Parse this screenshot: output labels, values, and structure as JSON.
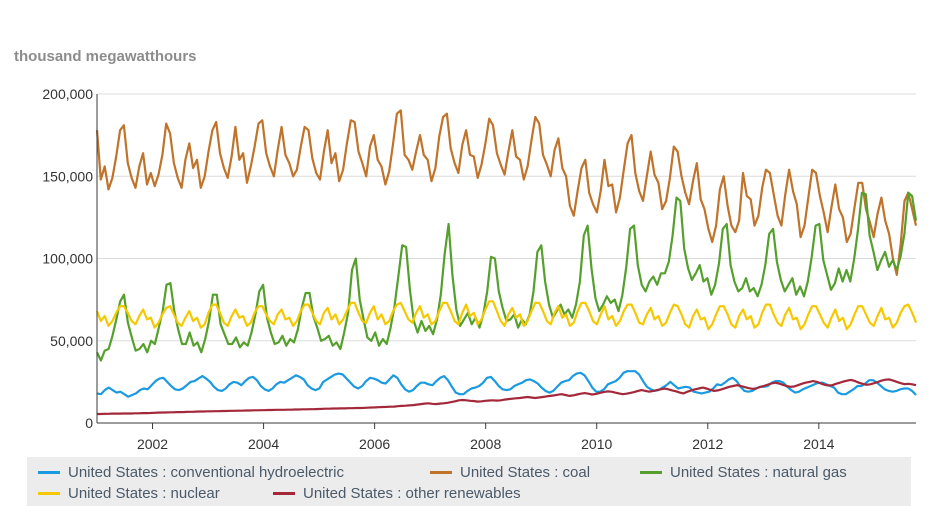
{
  "unit_label": "thousand megawatthours",
  "chart_data": {
    "type": "line",
    "ylabel": "thousand megawatthours",
    "ylim": [
      0,
      200000
    ],
    "y_ticks": [
      "200,000",
      "150,000",
      "100,000",
      "50,000",
      "0"
    ],
    "x_ticks": [
      "2002",
      "2004",
      "2006",
      "2008",
      "2010",
      "2012",
      "2014"
    ],
    "x_range": [
      2001.0,
      2015.75
    ],
    "grid": true,
    "legend": "bottom",
    "series": [
      {
        "name": "United States : conventional hydroelectric",
        "color": "#1a9ae0",
        "values": [
          18000,
          17500,
          20000,
          21500,
          20000,
          18500,
          19000,
          17500,
          16000,
          17000,
          18000,
          20000,
          21000,
          20500,
          23000,
          25500,
          27000,
          27500,
          25000,
          22500,
          20500,
          20000,
          21000,
          23000,
          25000,
          25500,
          27000,
          28500,
          27000,
          25000,
          22000,
          20000,
          19500,
          21000,
          23500,
          25000,
          24500,
          23000,
          25500,
          27500,
          28000,
          26000,
          22500,
          20500,
          19500,
          21000,
          23500,
          25000,
          24500,
          26000,
          27500,
          29000,
          28000,
          26500,
          23000,
          21000,
          20000,
          21000,
          25000,
          26500,
          28000,
          29500,
          30000,
          29500,
          27000,
          24500,
          22000,
          21000,
          22500,
          25500,
          27500,
          27000,
          26000,
          24500,
          24000,
          26500,
          29000,
          27500,
          23500,
          20500,
          19000,
          20000,
          22500,
          24500,
          24500,
          23500,
          23000,
          25500,
          27500,
          28500,
          26000,
          22000,
          18500,
          17500,
          17500,
          19500,
          21000,
          21500,
          22500,
          24500,
          27500,
          28000,
          25500,
          22500,
          20500,
          20000,
          20500,
          22500,
          23500,
          24500,
          26000,
          26500,
          25500,
          24000,
          21500,
          19500,
          18500,
          19500,
          22000,
          24500,
          25500,
          26000,
          28500,
          30000,
          30500,
          29000,
          25500,
          21500,
          19000,
          19000,
          20500,
          23500,
          24500,
          25500,
          27500,
          30500,
          31500,
          31500,
          31500,
          29500,
          25500,
          22000,
          20500,
          19500,
          20000,
          21500,
          23000,
          25000,
          23000,
          21000,
          21500,
          22000,
          21500,
          19000,
          18500,
          18000,
          18500,
          19000,
          21000,
          23500,
          23000,
          24500,
          26500,
          27500,
          25500,
          22000,
          19500,
          19000,
          19500,
          21000,
          22000,
          22000,
          22500,
          24500,
          25500,
          25500,
          24500,
          22000,
          20000,
          18500,
          19000,
          20500,
          21500,
          22500,
          23500,
          24500,
          24500,
          23500,
          22500,
          21500,
          18500,
          17500,
          17500,
          19000,
          20500,
          22500,
          22500,
          24000,
          26000,
          26000,
          24500,
          22500,
          20500,
          19500,
          19000,
          19500,
          20500,
          21000,
          21000,
          19500,
          17000
        ]
      },
      {
        "name": "United States : coal",
        "color": "#c0732a",
        "values": [
          178000,
          148000,
          156000,
          142000,
          149000,
          162000,
          178000,
          181000,
          158000,
          149000,
          143000,
          156000,
          164000,
          145000,
          152000,
          144000,
          151000,
          163000,
          182000,
          176000,
          158000,
          149000,
          143000,
          160000,
          170000,
          155000,
          160000,
          143000,
          150000,
          165000,
          178000,
          183000,
          164000,
          155000,
          149000,
          162000,
          180000,
          160000,
          164000,
          146000,
          156000,
          168000,
          182000,
          184000,
          164000,
          156000,
          150000,
          166000,
          180000,
          163000,
          158000,
          150000,
          154000,
          168000,
          180000,
          178000,
          161000,
          152000,
          148000,
          165000,
          178000,
          158000,
          164000,
          147000,
          154000,
          170000,
          184000,
          183000,
          165000,
          158000,
          150000,
          168000,
          175000,
          160000,
          156000,
          145000,
          153000,
          170000,
          188000,
          190000,
          163000,
          160000,
          154000,
          165000,
          175000,
          163000,
          160000,
          147000,
          155000,
          174000,
          186000,
          188000,
          167000,
          158000,
          152000,
          169000,
          178000,
          163000,
          162000,
          149000,
          157000,
          170000,
          185000,
          181000,
          164000,
          157000,
          151000,
          165000,
          178000,
          162000,
          160000,
          148000,
          156000,
          172000,
          186000,
          182000,
          163000,
          157000,
          150000,
          166000,
          173000,
          155000,
          150000,
          132000,
          126000,
          141000,
          155000,
          160000,
          140000,
          133000,
          128000,
          141000,
          160000,
          144000,
          145000,
          128000,
          137000,
          154000,
          170000,
          175000,
          152000,
          141000,
          135000,
          150000,
          165000,
          151000,
          146000,
          130000,
          135000,
          149000,
          168000,
          165000,
          150000,
          140000,
          133000,
          147000,
          158000,
          136000,
          130000,
          118000,
          110000,
          120000,
          142000,
          150000,
          132000,
          120000,
          116000,
          123000,
          152000,
          138000,
          136000,
          120000,
          126000,
          143000,
          154000,
          152000,
          139000,
          126000,
          120000,
          139000,
          154000,
          141000,
          133000,
          113000,
          120000,
          137000,
          154000,
          152000,
          138000,
          128000,
          116000,
          131000,
          145000,
          130000,
          125000,
          110000,
          115000,
          131000,
          146000,
          146000,
          130000,
          122000,
          113000,
          127000,
          137000,
          123000,
          115000,
          100000,
          90000,
          108000,
          135000,
          140000,
          130000,
          120000
        ]
      },
      {
        "name": "United States : natural gas",
        "color": "#55a02c",
        "values": [
          43000,
          38000,
          44000,
          45000,
          53000,
          63000,
          74000,
          78000,
          61000,
          52000,
          44000,
          45000,
          48000,
          43000,
          50000,
          48000,
          58000,
          68000,
          84000,
          85000,
          68000,
          57000,
          48000,
          48000,
          55000,
          47000,
          49000,
          43000,
          51000,
          62000,
          78000,
          78000,
          60000,
          54000,
          48000,
          48000,
          52000,
          46000,
          49000,
          47000,
          55000,
          66000,
          80000,
          84000,
          64000,
          55000,
          48000,
          49000,
          53000,
          47000,
          51000,
          49000,
          57000,
          70000,
          79000,
          79000,
          65000,
          58000,
          50000,
          51000,
          53000,
          47000,
          49000,
          45000,
          55000,
          67000,
          93000,
          100000,
          75000,
          63000,
          52000,
          50000,
          55000,
          47000,
          51000,
          48000,
          58000,
          71000,
          89000,
          108000,
          107000,
          81000,
          62000,
          55000,
          62000,
          56000,
          59000,
          54000,
          63000,
          78000,
          103000,
          121000,
          90000,
          69000,
          59000,
          63000,
          67000,
          60000,
          64000,
          58000,
          66000,
          80000,
          101000,
          100000,
          80000,
          70000,
          62000,
          63000,
          66000,
          58000,
          63000,
          60000,
          66000,
          80000,
          104000,
          108000,
          86000,
          72000,
          64000,
          68000,
          72000,
          66000,
          69000,
          64000,
          72000,
          86000,
          114000,
          120000,
          94000,
          76000,
          68000,
          72000,
          77000,
          73000,
          75000,
          68000,
          78000,
          95000,
          118000,
          120000,
          96000,
          84000,
          80000,
          86000,
          89000,
          84000,
          91000,
          91000,
          98000,
          114000,
          137000,
          135000,
          106000,
          94000,
          87000,
          91000,
          96000,
          86000,
          88000,
          78000,
          84000,
          97000,
          118000,
          121000,
          96000,
          86000,
          80000,
          82000,
          88000,
          80000,
          82000,
          77000,
          84000,
          96000,
          115000,
          118000,
          98000,
          87000,
          80000,
          84000,
          88000,
          78000,
          83000,
          77000,
          86000,
          101000,
          120000,
          121000,
          99000,
          90000,
          81000,
          85000,
          94000,
          86000,
          93000,
          86000,
          100000,
          118000,
          140000,
          139000,
          114000,
          104000,
          93000,
          99000,
          104000,
          95000,
          99000,
          93000,
          101000,
          115000,
          140000,
          138000,
          123000
        ]
      },
      {
        "name": "United States : nuclear",
        "color": "#f5c800",
        "values": [
          68000,
          62000,
          65000,
          59000,
          62000,
          67000,
          71000,
          71000,
          67000,
          62000,
          60000,
          65000,
          69000,
          63000,
          64000,
          58000,
          61000,
          66000,
          70000,
          71000,
          66000,
          61000,
          59000,
          64000,
          68000,
          62000,
          64000,
          58000,
          60000,
          67000,
          72000,
          72000,
          67000,
          61000,
          59000,
          65000,
          69000,
          64000,
          65000,
          59000,
          61000,
          67000,
          71000,
          71000,
          66000,
          62000,
          60000,
          66000,
          69000,
          63000,
          64000,
          59000,
          62000,
          68000,
          72000,
          72000,
          67000,
          62000,
          60000,
          67000,
          70000,
          63000,
          66000,
          60000,
          63000,
          68000,
          73000,
          73000,
          67000,
          62000,
          61000,
          67000,
          71000,
          63000,
          66000,
          60000,
          62000,
          68000,
          72000,
          73000,
          68000,
          63000,
          61000,
          67000,
          71000,
          64000,
          66000,
          60000,
          62000,
          68000,
          73000,
          73000,
          68000,
          62000,
          60000,
          67000,
          72000,
          65000,
          67000,
          60000,
          63000,
          69000,
          74000,
          74000,
          68000,
          62000,
          59000,
          66000,
          70000,
          64000,
          66000,
          59000,
          62000,
          68000,
          73000,
          73000,
          68000,
          62000,
          60000,
          67000,
          71000,
          64000,
          66000,
          59000,
          61000,
          68000,
          73000,
          73000,
          68000,
          62000,
          60000,
          66000,
          71000,
          63000,
          65000,
          59000,
          62000,
          68000,
          72000,
          72000,
          67000,
          61000,
          60000,
          66000,
          70000,
          63000,
          65000,
          59000,
          61000,
          67000,
          72000,
          71000,
          66000,
          60000,
          58000,
          65000,
          69000,
          63000,
          64000,
          57000,
          60000,
          66000,
          71000,
          71000,
          66000,
          60000,
          58000,
          65000,
          69000,
          63000,
          65000,
          58000,
          60000,
          67000,
          72000,
          72000,
          66000,
          61000,
          59000,
          66000,
          70000,
          63000,
          64000,
          57000,
          60000,
          66000,
          71000,
          71000,
          66000,
          61000,
          58000,
          64000,
          69000,
          62000,
          64000,
          57000,
          60000,
          66000,
          71000,
          71000,
          66000,
          61000,
          59000,
          65000,
          70000,
          63000,
          64000,
          58000,
          61000,
          67000,
          71000,
          72000,
          67000,
          61000
        ]
      },
      {
        "name": "United States : other renewables",
        "color": "#a3283a",
        "values": [
          5500,
          5500,
          5600,
          5600,
          5700,
          5700,
          5700,
          5800,
          5800,
          5800,
          5900,
          5900,
          6000,
          6000,
          6100,
          6200,
          6300,
          6400,
          6400,
          6500,
          6500,
          6600,
          6600,
          6700,
          6800,
          6800,
          6900,
          7000,
          7000,
          7100,
          7100,
          7200,
          7200,
          7300,
          7300,
          7400,
          7400,
          7500,
          7500,
          7600,
          7600,
          7700,
          7700,
          7800,
          7800,
          7900,
          7900,
          8000,
          8000,
          8000,
          8100,
          8100,
          8200,
          8200,
          8300,
          8300,
          8400,
          8400,
          8500,
          8600,
          8700,
          8700,
          8800,
          8800,
          8900,
          8900,
          9000,
          9000,
          9100,
          9100,
          9200,
          9300,
          9400,
          9500,
          9600,
          9700,
          9800,
          9900,
          10000,
          10200,
          10400,
          10500,
          10700,
          10900,
          11200,
          11500,
          11800,
          12000,
          11700,
          11500,
          11800,
          12000,
          12300,
          12700,
          13200,
          13800,
          14000,
          13800,
          13500,
          13300,
          13000,
          13200,
          13500,
          13700,
          13800,
          13600,
          13800,
          14200,
          14500,
          14800,
          15000,
          15200,
          15500,
          15800,
          15500,
          15200,
          15500,
          15800,
          16200,
          16500,
          16800,
          17200,
          17500,
          17000,
          16500,
          16800,
          17300,
          17800,
          18200,
          17800,
          17300,
          17700,
          18300,
          18800,
          19200,
          19000,
          18500,
          18000,
          17500,
          17800,
          18300,
          18800,
          19500,
          20000,
          19500,
          19000,
          19500,
          20000,
          20500,
          21000,
          20500,
          19800,
          19300,
          18500,
          18000,
          19000,
          19800,
          20500,
          21000,
          21500,
          21000,
          20200,
          19500,
          19800,
          20500,
          21200,
          22000,
          22500,
          23000,
          22500,
          21800,
          21200,
          20800,
          21000,
          21800,
          22500,
          23200,
          24000,
          24500,
          24000,
          23200,
          22500,
          22000,
          22200,
          23000,
          23800,
          24500,
          25000,
          25500,
          25000,
          24000,
          23200,
          22800,
          23000,
          23800,
          24500,
          25200,
          25800,
          26200,
          25500,
          24500,
          23800,
          23200,
          23500,
          24200,
          25000,
          25800,
          26300,
          26500,
          25800,
          25000,
          24200,
          23600,
          23800,
          23500,
          23000
        ]
      }
    ]
  }
}
